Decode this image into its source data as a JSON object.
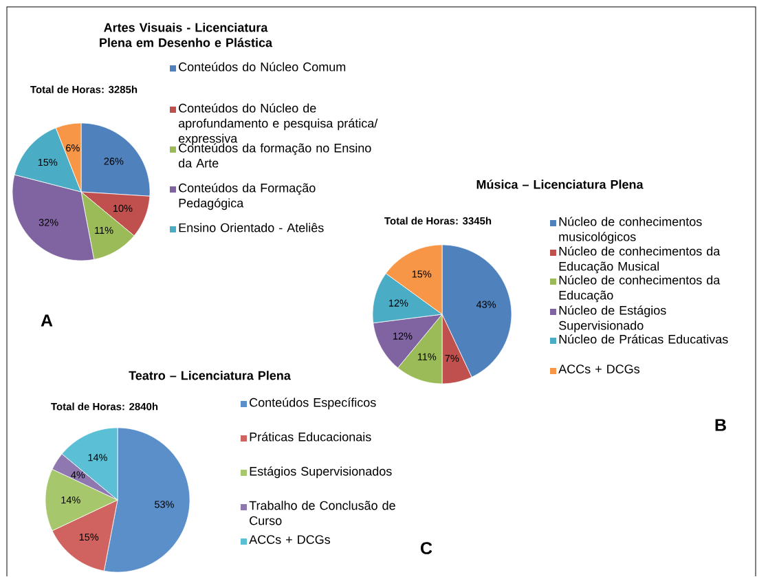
{
  "chart_data": [
    {
      "type": "pie",
      "title": "Artes Visuais - Licenciatura Plena em Desenho e Plástica",
      "subtitle": "Total de Horas: 3285h",
      "categories": [
        "Conteúdos do Núcleo Comum",
        "Conteúdos do Núcleo de aprofundamento e pesquisa prática/ expressiva",
        "Conteúdos da formação no Ensino da Arte",
        "Conteúdos da Formação Pedagógica",
        "Ensino Orientado - Ateliês",
        null
      ],
      "values": [
        26,
        10,
        11,
        32,
        15,
        6
      ],
      "value_labels": [
        "26%",
        "10%",
        "11%",
        "32%",
        "15%",
        "6%"
      ],
      "colors": [
        "#4f81bd",
        "#c0504d",
        "#9bbb59",
        "#8064a2",
        "#4bacc6",
        "#f79646"
      ],
      "legend": "right",
      "annotations": [
        "A"
      ]
    },
    {
      "type": "pie",
      "title": "Música – Licenciatura Plena",
      "subtitle": "Total de Horas: 3345h",
      "categories": [
        "Núcleo de conhecimentos musicológicos",
        "Núcleo de conhecimentos da Educação Musical",
        "Núcleo de conhecimentos da Educação",
        "Núcleo de Estágios Supervisionado",
        "Núcleo de Práticas Educativas",
        "ACCs + DCGs"
      ],
      "values": [
        43,
        7,
        11,
        12,
        12,
        15
      ],
      "value_labels": [
        "43%",
        "7%",
        "11%",
        "12%",
        "12%",
        "15%"
      ],
      "colors": [
        "#4f81bd",
        "#c0504d",
        "#9bbb59",
        "#8064a2",
        "#4bacc6",
        "#f79646"
      ],
      "legend": "right",
      "annotations": [
        "B"
      ]
    },
    {
      "type": "pie",
      "title": "Teatro – Licenciatura Plena",
      "subtitle": "Total de Horas: 2840h",
      "categories": [
        "Conteúdos Específicos",
        "Práticas Educacionais",
        "Estágios Supervisionados",
        "Trabalho de Conclusão de Curso",
        "ACCs + DCGs"
      ],
      "values": [
        53,
        15,
        14,
        4,
        14
      ],
      "value_labels": [
        "53%",
        "15%",
        "14%",
        "4%",
        "14%"
      ],
      "colors": [
        "#5b8fc9",
        "#d0635f",
        "#a7c76c",
        "#8f77b0",
        "#5bbfd6"
      ],
      "legend": "right",
      "annotations": [
        "C"
      ]
    }
  ]
}
